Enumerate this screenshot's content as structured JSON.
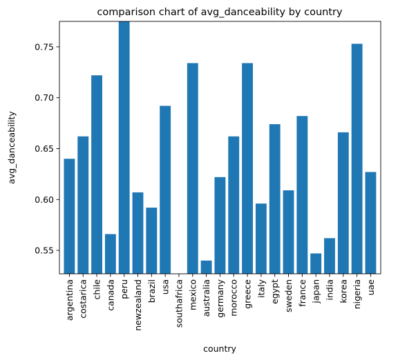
{
  "chart_data": {
    "type": "bar",
    "title": "comparison chart of avg_danceability by country",
    "xlabel": "country",
    "ylabel": "avg_danceability",
    "categories": [
      "argentina",
      "costarica",
      "chile",
      "canada",
      "peru",
      "newzealand",
      "brazil",
      "usa",
      "southafrica",
      "mexico",
      "australia",
      "germany",
      "morocco",
      "greece",
      "italy",
      "egypt",
      "sweden",
      "france",
      "japan",
      "india",
      "korea",
      "nigeria",
      "uae"
    ],
    "values": [
      0.64,
      0.662,
      0.722,
      0.566,
      0.775,
      0.607,
      0.592,
      0.692,
      0.52,
      0.734,
      0.54,
      0.622,
      0.662,
      0.734,
      0.596,
      0.674,
      0.609,
      0.682,
      0.547,
      0.562,
      0.666,
      0.753,
      0.627
    ],
    "yticks": [
      0.55,
      0.6,
      0.65,
      0.7,
      0.75
    ],
    "ytick_labels": [
      "0.55",
      "0.60",
      "0.65",
      "0.70",
      "0.75"
    ],
    "ylim": [
      0.527,
      0.775
    ],
    "bar_color": "#1f77b4",
    "grid": false,
    "legend": "none"
  }
}
